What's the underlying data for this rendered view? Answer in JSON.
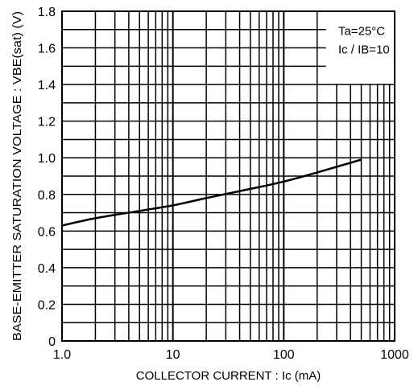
{
  "chart_data": {
    "type": "line",
    "xlabel": "COLLECTOR CURRENT : Ic (mA)",
    "ylabel": "BASE-EMITTER SATURATION VOLTAGE : VBE(sat) (V)",
    "x_scale": "log",
    "xlim": [
      1,
      1000
    ],
    "ylim": [
      0,
      1.8
    ],
    "x_ticks": [
      "1.0",
      "10",
      "100",
      "1000"
    ],
    "y_ticks": [
      "0",
      "0.2",
      "0.4",
      "0.6",
      "0.8",
      "1.0",
      "1.2",
      "1.4",
      "1.6",
      "1.8"
    ],
    "grid": true,
    "annotations": [
      "Ta=25°C",
      "Ic / IB=10"
    ],
    "series": [
      {
        "x": [
          1,
          2,
          5,
          10,
          20,
          50,
          100,
          200,
          500
        ],
        "y": [
          0.63,
          0.67,
          0.71,
          0.74,
          0.78,
          0.83,
          0.87,
          0.92,
          0.99
        ]
      }
    ]
  }
}
